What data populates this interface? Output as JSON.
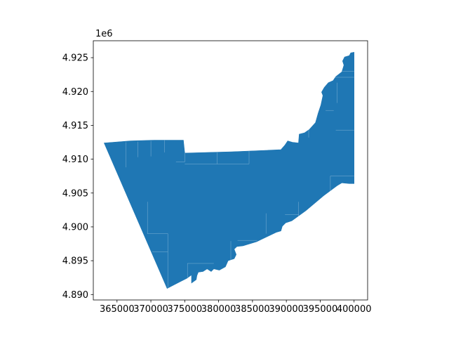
{
  "chart_data": {
    "type": "map",
    "title": "",
    "xlabel": "",
    "ylabel": "",
    "y_offset_text": "1e6",
    "xlim": [
      361500,
      402000
    ],
    "ylim": [
      4889200,
      4927500
    ],
    "x_ticks": [
      365000,
      370000,
      375000,
      380000,
      385000,
      390000,
      395000,
      400000
    ],
    "x_tick_labels": [
      "365000",
      "370000",
      "375000",
      "380000",
      "385000",
      "390000",
      "395000",
      "400000"
    ],
    "y_ticks": [
      4890000,
      4895000,
      4900000,
      4905000,
      4910000,
      4915000,
      4920000,
      4925000
    ],
    "y_tick_labels": [
      "4.890",
      "4.895",
      "4.900",
      "4.905",
      "4.910",
      "4.915",
      "4.920",
      "4.925"
    ],
    "grid": false,
    "legend": "none",
    "fill_color": "#1f77b4",
    "edge_color": "#ffffff",
    "region_outline": [
      [
        363100,
        4912400
      ],
      [
        367000,
        4912700
      ],
      [
        370500,
        4912800
      ],
      [
        374800,
        4912800
      ],
      [
        375000,
        4910900
      ],
      [
        382000,
        4911100
      ],
      [
        389200,
        4911400
      ],
      [
        389800,
        4912100
      ],
      [
        390200,
        4912700
      ],
      [
        390900,
        4912500
      ],
      [
        391800,
        4912400
      ],
      [
        391900,
        4913700
      ],
      [
        392700,
        4913900
      ],
      [
        393400,
        4914400
      ],
      [
        394300,
        4915400
      ],
      [
        394700,
        4916800
      ],
      [
        395100,
        4918000
      ],
      [
        395400,
        4919400
      ],
      [
        395200,
        4919900
      ],
      [
        395600,
        4920600
      ],
      [
        396200,
        4921300
      ],
      [
        396900,
        4921600
      ],
      [
        397300,
        4922200
      ],
      [
        398200,
        4922900
      ],
      [
        398500,
        4923900
      ],
      [
        398300,
        4924500
      ],
      [
        398600,
        4925100
      ],
      [
        399300,
        4925300
      ],
      [
        399500,
        4925700
      ],
      [
        400000,
        4925800
      ],
      [
        400000,
        4906400
      ],
      [
        399300,
        4906400
      ],
      [
        398200,
        4906500
      ],
      [
        397500,
        4906100
      ],
      [
        395500,
        4904600
      ],
      [
        392900,
        4902400
      ],
      [
        390800,
        4900900
      ],
      [
        389900,
        4900600
      ],
      [
        389400,
        4900100
      ],
      [
        389200,
        4899400
      ],
      [
        388500,
        4899200
      ],
      [
        385600,
        4897800
      ],
      [
        383600,
        4897200
      ],
      [
        382700,
        4897100
      ],
      [
        382300,
        4896700
      ],
      [
        382600,
        4895900
      ],
      [
        382300,
        4895300
      ],
      [
        381400,
        4895000
      ],
      [
        381000,
        4894100
      ],
      [
        380100,
        4893600
      ],
      [
        379300,
        4893800
      ],
      [
        378900,
        4893400
      ],
      [
        378300,
        4893800
      ],
      [
        377700,
        4893400
      ],
      [
        377000,
        4893300
      ],
      [
        376800,
        4892800
      ],
      [
        376700,
        4892200
      ],
      [
        376000,
        4891700
      ],
      [
        376000,
        4892900
      ],
      [
        375300,
        4892400
      ],
      [
        372400,
        4890900
      ],
      [
        363100,
        4912400
      ]
    ],
    "internal_boundaries": [
      [
        [
          373700,
          4909600
        ],
        [
          375000,
          4909600
        ],
        [
          375000,
          4910900
        ]
      ],
      [
        [
          375000,
          4909300
        ],
        [
          384500,
          4909300
        ],
        [
          384500,
          4911200
        ]
      ],
      [
        [
          379800,
          4909300
        ],
        [
          379800,
          4911000
        ]
      ],
      [
        [
          366300,
          4912500
        ],
        [
          366300,
          4908800
        ]
      ],
      [
        [
          368100,
          4912600
        ],
        [
          368100,
          4910300
        ]
      ],
      [
        [
          370000,
          4912700
        ],
        [
          370000,
          4910400
        ]
      ],
      [
        [
          372000,
          4912800
        ],
        [
          372000,
          4911000
        ]
      ],
      [
        [
          369500,
          4903700
        ],
        [
          369500,
          4899000
        ]
      ],
      [
        [
          369500,
          4899000
        ],
        [
          372500,
          4899000
        ],
        [
          372500,
          4896300
        ]
      ],
      [
        [
          372500,
          4896300
        ],
        [
          370200,
          4896300
        ]
      ],
      [
        [
          372500,
          4896300
        ],
        [
          372500,
          4891000
        ]
      ],
      [
        [
          375400,
          4894600
        ],
        [
          379300,
          4894600
        ]
      ],
      [
        [
          375400,
          4894600
        ],
        [
          375400,
          4892500
        ]
      ],
      [
        [
          381800,
          4897900
        ],
        [
          381800,
          4895100
        ]
      ],
      [
        [
          382800,
          4898000
        ],
        [
          385700,
          4898000
        ]
      ],
      [
        [
          387000,
          4902000
        ],
        [
          387000,
          4899000
        ]
      ],
      [
        [
          389800,
          4901800
        ],
        [
          391800,
          4901800
        ]
      ],
      [
        [
          391800,
          4903700
        ],
        [
          391800,
          4900300
        ]
      ],
      [
        [
          396500,
          4905200
        ],
        [
          396500,
          4907500
        ],
        [
          400000,
          4907500
        ]
      ],
      [
        [
          397300,
          4914300
        ],
        [
          400000,
          4914300
        ]
      ],
      [
        [
          393300,
          4913200
        ],
        [
          393300,
          4914800
        ]
      ],
      [
        [
          395800,
          4917200
        ],
        [
          397000,
          4917200
        ]
      ],
      [
        [
          397500,
          4918300
        ],
        [
          397500,
          4921300
        ]
      ],
      [
        [
          397000,
          4922100
        ],
        [
          400000,
          4922100
        ]
      ],
      [
        [
          398200,
          4923000
        ],
        [
          400000,
          4923000
        ]
      ]
    ]
  }
}
